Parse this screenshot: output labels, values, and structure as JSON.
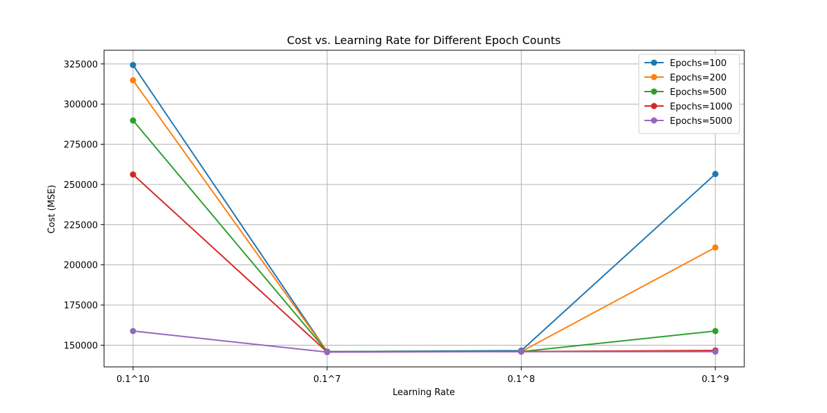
{
  "chart_data": {
    "type": "line",
    "title": "Cost vs. Learning Rate for Different Epoch Counts",
    "xlabel": "Learning Rate",
    "ylabel": "Cost (MSE)",
    "categories": [
      "0.1^10",
      "0.1^7",
      "0.1^8",
      "0.1^9"
    ],
    "ylim": [
      136500,
      333500
    ],
    "yticks": [
      150000,
      175000,
      200000,
      225000,
      250000,
      275000,
      300000,
      325000
    ],
    "grid": true,
    "legend_position": "top-right",
    "series": [
      {
        "name": "Epochs=100",
        "color": "#1f77b4",
        "values": [
          324300,
          146000,
          146600,
          256500
        ]
      },
      {
        "name": "Epochs=200",
        "color": "#ff7f0e",
        "values": [
          314800,
          146000,
          146000,
          210800
        ]
      },
      {
        "name": "Epochs=500",
        "color": "#2ca02c",
        "values": [
          289800,
          146000,
          146000,
          158800
        ]
      },
      {
        "name": "Epochs=1000",
        "color": "#d62728",
        "values": [
          256200,
          145800,
          146000,
          146700
        ]
      },
      {
        "name": "Epochs=5000",
        "color": "#9467bd",
        "values": [
          158800,
          145700,
          146000,
          146000
        ]
      }
    ]
  }
}
